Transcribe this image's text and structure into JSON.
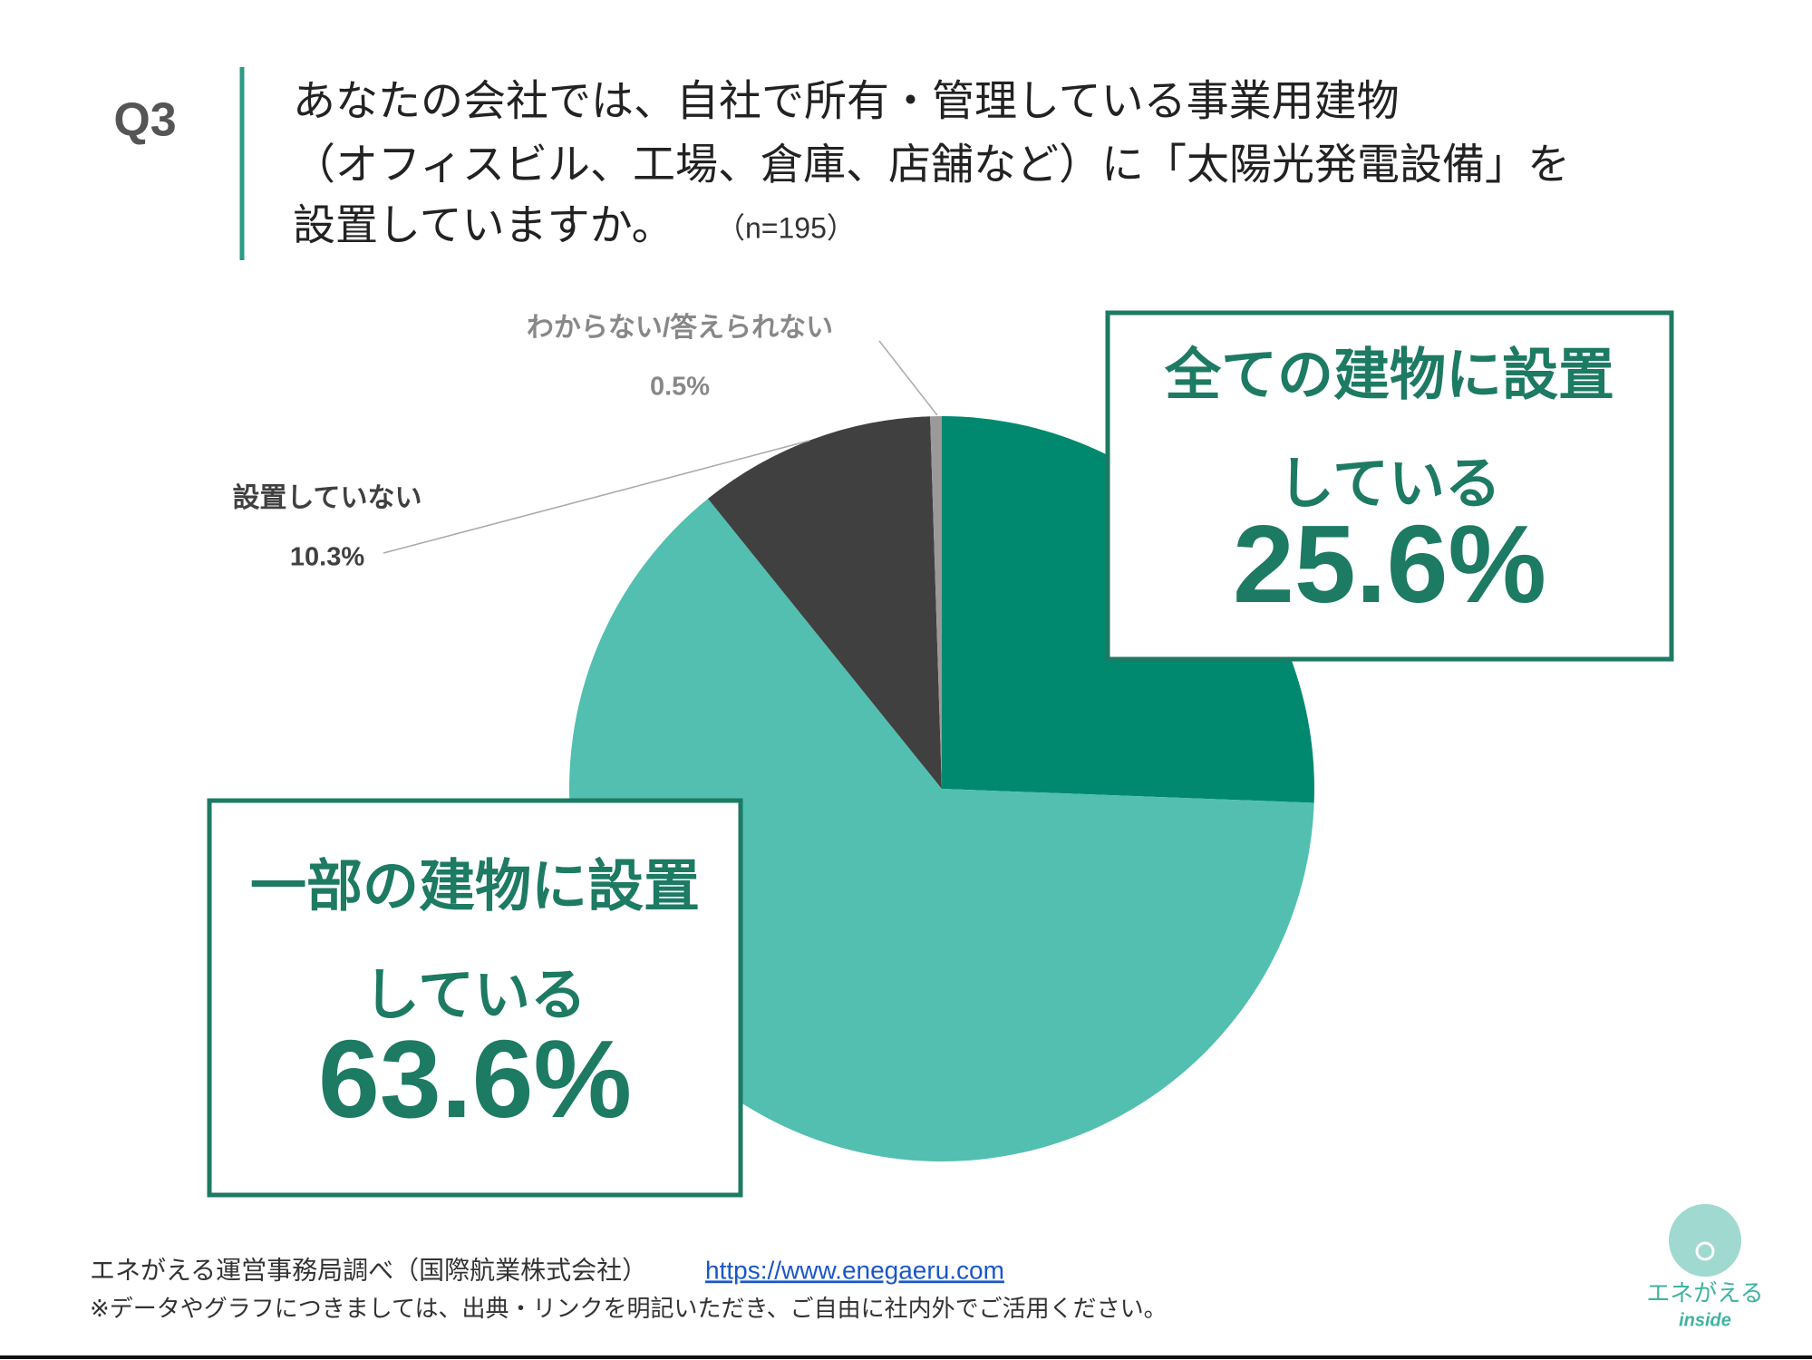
{
  "chart_data": {
    "type": "pie",
    "question_label": "Q3",
    "title": [
      "あなたの会社では、自社で所有・管理している事業用建物",
      "（オフィスビル、工場、倉庫、店舗など）に「太陽光発電設備」を",
      "設置していますか。"
    ],
    "sample_size": "（n=195）",
    "categories": [
      [
        "全ての建物に設置",
        "している"
      ],
      [
        "一部の建物に設置",
        "している"
      ],
      [
        "設置していない"
      ],
      [
        "わからない/答えられない"
      ]
    ],
    "values": [
      25.6,
      63.6,
      10.3,
      0.5
    ],
    "value_labels": [
      "25.6%",
      "63.6%",
      "10.3%",
      "0.5%"
    ],
    "colors": [
      "#00896f",
      "#52bfb0",
      "#404040",
      "#9a9a9a"
    ],
    "start_angle": 0,
    "direction": "clockwise"
  },
  "footer": {
    "source": "エネがえる運営事務局調べ（国際航業株式会社）",
    "url": "https://www.enegaeru.com",
    "note": "※データやグラフにつきましては、出典・リンクを明記いただき、ご自由に社内外でご活用ください。"
  },
  "logo": {
    "name": "エネがえる",
    "sub": "inside"
  }
}
